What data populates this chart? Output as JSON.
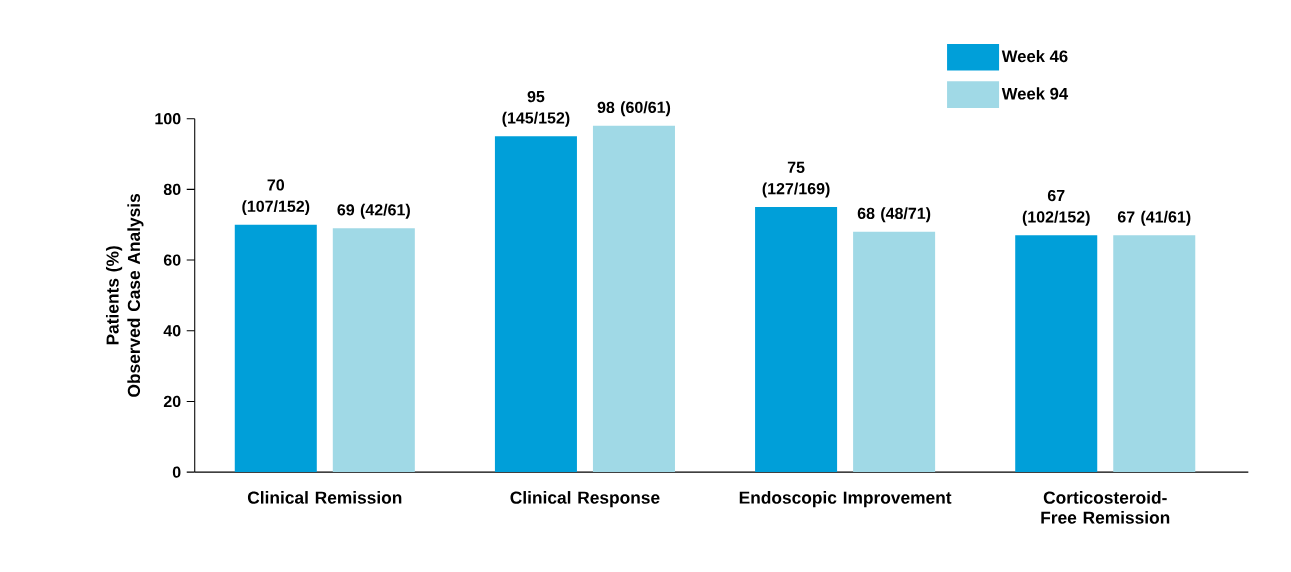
{
  "chart_data": {
    "type": "bar",
    "ylabel": "Patients (%)\nObserved Case Analysis",
    "categories": [
      "Clinical Remission",
      "Clinical Response",
      "Endoscopic Improvement",
      "Corticosteroid-Free Remission"
    ],
    "series": [
      {
        "name": "Week 46",
        "color": "#009fd9",
        "values": [
          70,
          95,
          75,
          67
        ],
        "value_labels": [
          "70 (107/152)",
          "95 (145/152)",
          "75 (127/169)",
          "67 (102/152)"
        ]
      },
      {
        "name": "Week 94",
        "color": "#a0d9e6",
        "values": [
          69,
          98,
          68,
          67
        ],
        "value_labels": [
          "69 (42/61)",
          "98 (60/61)",
          "68 (48/71)",
          "67 (41/61)"
        ]
      }
    ],
    "ylim": [
      0,
      100
    ],
    "yticks": [
      0,
      20,
      40,
      60,
      80,
      100
    ],
    "legend": "top right",
    "grid": false
  }
}
